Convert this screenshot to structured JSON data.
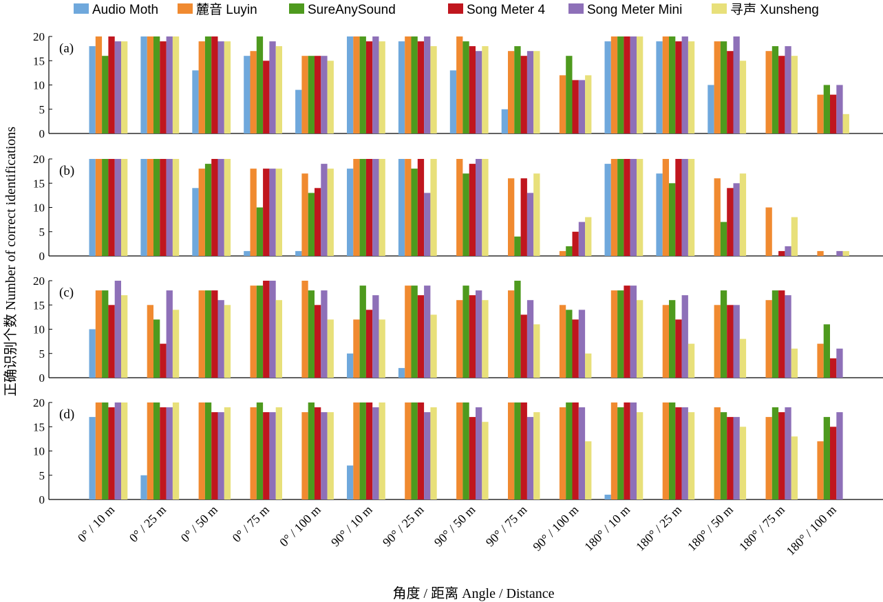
{
  "legend": [
    {
      "name": "Audio Moth",
      "color": "#6fa8dc"
    },
    {
      "name": "麓音 Luyin",
      "color": "#f08a30"
    },
    {
      "name": "SureAnySound",
      "color": "#4e9a1e"
    },
    {
      "name": "Song Meter 4",
      "color": "#c0161e"
    },
    {
      "name": "Song Meter Mini",
      "color": "#8e70b8"
    },
    {
      "name": "寻声 Xunsheng",
      "color": "#e8e07a"
    }
  ],
  "chart_data": {
    "type": "bar",
    "xlabel": "角度 / 距离 Angle / Distance",
    "ylabel": "正确识别个数 Number of correct identifications",
    "ylim": [
      0,
      20
    ],
    "yticks": [
      0,
      5,
      10,
      15,
      20
    ],
    "categories": [
      "0° / 10 m",
      "0° / 25 m",
      "0° / 50 m",
      "0° / 75 m",
      "0° / 100 m",
      "90° / 10 m",
      "90° / 25 m",
      "90° / 50 m",
      "90° / 75 m",
      "90° / 100 m",
      "180° / 10 m",
      "180° / 25 m",
      "180° / 50 m",
      "180° / 75 m",
      "180° / 100 m"
    ],
    "panels": [
      {
        "label": "(a)",
        "series": [
          {
            "name": "Audio Moth",
            "values": [
              18,
              20,
              13,
              16,
              9,
              20,
              19,
              13,
              5,
              0,
              19,
              19,
              10,
              0,
              0
            ]
          },
          {
            "name": "麓音 Luyin",
            "values": [
              20,
              20,
              19,
              17,
              16,
              20,
              20,
              20,
              17,
              12,
              20,
              20,
              19,
              17,
              8
            ]
          },
          {
            "name": "SureAnySound",
            "values": [
              16,
              20,
              20,
              20,
              16,
              20,
              20,
              19,
              18,
              16,
              20,
              20,
              19,
              18,
              10
            ]
          },
          {
            "name": "Song Meter 4",
            "values": [
              20,
              19,
              20,
              15,
              16,
              19,
              19,
              18,
              16,
              11,
              20,
              19,
              17,
              16,
              8
            ]
          },
          {
            "name": "Song Meter Mini",
            "values": [
              19,
              20,
              19,
              19,
              16,
              20,
              20,
              17,
              17,
              11,
              20,
              20,
              20,
              18,
              10
            ]
          },
          {
            "name": "寻声 Xunsheng",
            "values": [
              19,
              20,
              19,
              18,
              15,
              19,
              18,
              18,
              17,
              12,
              20,
              19,
              15,
              16,
              4
            ]
          }
        ]
      },
      {
        "label": "(b)",
        "series": [
          {
            "name": "Audio Moth",
            "values": [
              20,
              20,
              14,
              1,
              1,
              18,
              20,
              0,
              0,
              0,
              19,
              17,
              0,
              0,
              0
            ]
          },
          {
            "name": "麓音 Luyin",
            "values": [
              20,
              20,
              18,
              18,
              17,
              20,
              20,
              20,
              16,
              1,
              20,
              20,
              16,
              10,
              1
            ]
          },
          {
            "name": "SureAnySound",
            "values": [
              20,
              20,
              19,
              10,
              13,
              20,
              18,
              17,
              4,
              2,
              20,
              15,
              7,
              0,
              0
            ]
          },
          {
            "name": "Song Meter 4",
            "values": [
              20,
              20,
              20,
              18,
              14,
              20,
              20,
              19,
              16,
              5,
              20,
              20,
              14,
              1,
              0
            ]
          },
          {
            "name": "Song Meter Mini",
            "values": [
              20,
              20,
              20,
              18,
              19,
              20,
              13,
              20,
              13,
              7,
              20,
              20,
              15,
              2,
              1
            ]
          },
          {
            "name": "寻声 Xunsheng",
            "values": [
              20,
              20,
              20,
              18,
              18,
              20,
              20,
              20,
              17,
              8,
              20,
              20,
              17,
              8,
              1
            ]
          }
        ]
      },
      {
        "label": "(c)",
        "series": [
          {
            "name": "Audio Moth",
            "values": [
              10,
              0,
              0,
              0,
              0,
              5,
              2,
              0,
              0,
              0,
              0,
              0,
              0,
              0,
              0
            ]
          },
          {
            "name": "麓音 Luyin",
            "values": [
              18,
              15,
              18,
              19,
              20,
              12,
              19,
              16,
              18,
              15,
              18,
              15,
              15,
              16,
              7
            ]
          },
          {
            "name": "SureAnySound",
            "values": [
              18,
              12,
              18,
              19,
              18,
              19,
              19,
              19,
              20,
              14,
              18,
              16,
              18,
              18,
              11
            ]
          },
          {
            "name": "Song Meter 4",
            "values": [
              15,
              7,
              18,
              20,
              15,
              14,
              17,
              17,
              13,
              12,
              19,
              12,
              15,
              18,
              4
            ]
          },
          {
            "name": "Song Meter Mini",
            "values": [
              20,
              18,
              16,
              20,
              18,
              17,
              19,
              18,
              16,
              14,
              19,
              17,
              15,
              17,
              6
            ]
          },
          {
            "name": "寻声 Xunsheng",
            "values": [
              17,
              14,
              15,
              16,
              12,
              12,
              13,
              16,
              11,
              5,
              16,
              7,
              8,
              6,
              0
            ]
          }
        ]
      },
      {
        "label": "(d)",
        "series": [
          {
            "name": "Audio Moth",
            "values": [
              17,
              5,
              0,
              0,
              0,
              7,
              0,
              0,
              0,
              0,
              1,
              0,
              0,
              0,
              0
            ]
          },
          {
            "name": "麓音 Luyin",
            "values": [
              20,
              20,
              20,
              19,
              18,
              20,
              20,
              20,
              20,
              19,
              20,
              20,
              19,
              17,
              12
            ]
          },
          {
            "name": "SureAnySound",
            "values": [
              20,
              20,
              20,
              20,
              20,
              20,
              20,
              20,
              20,
              20,
              19,
              20,
              18,
              19,
              17
            ]
          },
          {
            "name": "Song Meter 4",
            "values": [
              19,
              19,
              18,
              18,
              19,
              20,
              20,
              17,
              20,
              20,
              20,
              19,
              17,
              18,
              15
            ]
          },
          {
            "name": "Song Meter Mini",
            "values": [
              20,
              19,
              18,
              18,
              18,
              19,
              18,
              19,
              17,
              19,
              20,
              19,
              17,
              19,
              18
            ]
          },
          {
            "name": "寻声 Xunsheng",
            "values": [
              20,
              20,
              19,
              19,
              18,
              20,
              19,
              16,
              18,
              12,
              18,
              18,
              15,
              13,
              0
            ]
          }
        ]
      }
    ]
  }
}
